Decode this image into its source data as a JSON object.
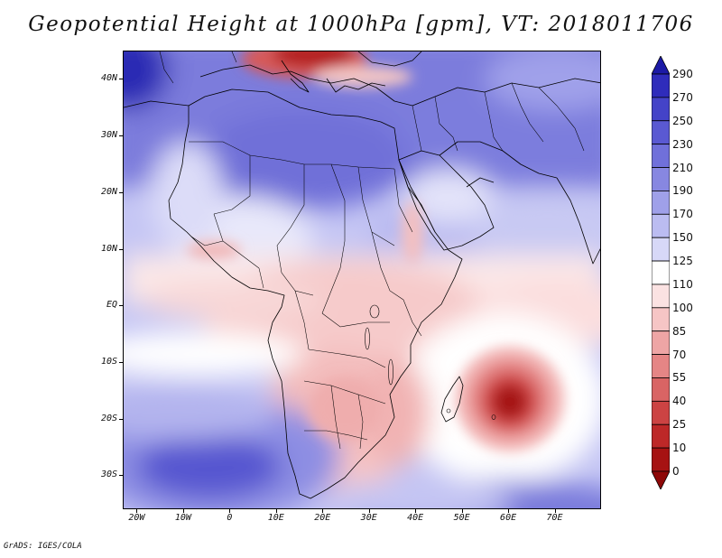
{
  "title": "Geopotential Height at 1000hPa [gpm], VT: 2018011706",
  "credit": "GrADS: IGES/COLA",
  "map": {
    "lon_range": [
      -23,
      80
    ],
    "lat_range": [
      -36,
      45
    ],
    "y_axis": [
      {
        "lat": 40,
        "label": "40N"
      },
      {
        "lat": 30,
        "label": "30N"
      },
      {
        "lat": 20,
        "label": "20N"
      },
      {
        "lat": 10,
        "label": "10N"
      },
      {
        "lat": 0,
        "label": "EQ"
      },
      {
        "lat": -10,
        "label": "10S"
      },
      {
        "lat": -20,
        "label": "20S"
      },
      {
        "lat": -30,
        "label": "30S"
      }
    ],
    "x_axis": [
      {
        "lon": -20,
        "label": "20W"
      },
      {
        "lon": -10,
        "label": "10W"
      },
      {
        "lon": 0,
        "label": "0"
      },
      {
        "lon": 10,
        "label": "10E"
      },
      {
        "lon": 20,
        "label": "20E"
      },
      {
        "lon": 30,
        "label": "30E"
      },
      {
        "lon": 40,
        "label": "40E"
      },
      {
        "lon": 50,
        "label": "50E"
      },
      {
        "lon": 60,
        "label": "60E"
      },
      {
        "lon": 70,
        "label": "70E"
      }
    ],
    "features": [
      {
        "name": "low-indian-ocean",
        "lon": 61,
        "lat": -18,
        "value": 0
      },
      {
        "name": "low-mediterranean",
        "lon": 18,
        "lat": 44,
        "value": 10
      },
      {
        "name": "high-atlantic",
        "lon": -21,
        "lat": 42,
        "value": 290
      },
      {
        "name": "high-south-atlantic",
        "lon": -10,
        "lat": -28,
        "value": 230
      },
      {
        "name": "high-sahara",
        "lon": 18,
        "lat": 25,
        "value": 220
      }
    ]
  },
  "colorbar": {
    "levels": [
      "290",
      "270",
      "250",
      "230",
      "210",
      "190",
      "170",
      "150",
      "125",
      "110",
      "100",
      "85",
      "70",
      "55",
      "40",
      "25",
      "10",
      "0"
    ],
    "colors": [
      "#1c1aa6",
      "#2f2cbb",
      "#4443c8",
      "#5a59d2",
      "#7070da",
      "#8787e1",
      "#9fa0e9",
      "#bbbcf1",
      "#d7d8f7",
      "#ffffff",
      "#fbe2e2",
      "#f6c5c5",
      "#eea5a5",
      "#e58585",
      "#d96464",
      "#cc4343",
      "#bd2828",
      "#a61212",
      "#8e0808"
    ]
  }
}
